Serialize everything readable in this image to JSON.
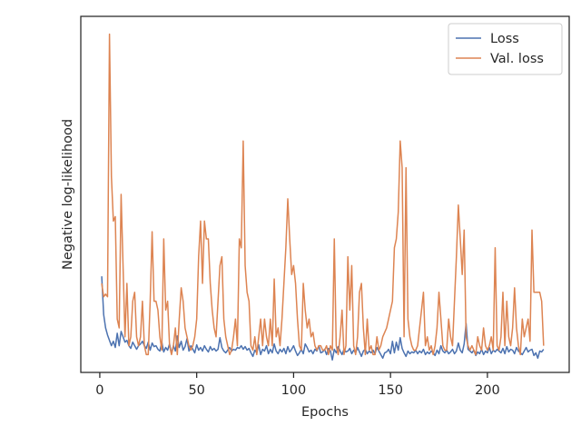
{
  "chart_data": {
    "type": "line",
    "x_label": "Epochs",
    "y_label": "Negative log-likelihood",
    "xlim": [
      -9.8,
      242.2
    ],
    "xticks": [
      0,
      50,
      100,
      150,
      200
    ],
    "ylim": [
      0,
      40
    ],
    "legend": "upper right",
    "x": [
      1,
      2,
      3,
      4,
      5,
      6,
      7,
      8,
      9,
      10,
      11,
      12,
      13,
      14,
      15,
      16,
      17,
      18,
      19,
      20,
      21,
      22,
      23,
      24,
      25,
      26,
      27,
      28,
      29,
      30,
      31,
      32,
      33,
      34,
      35,
      36,
      37,
      38,
      39,
      40,
      41,
      42,
      43,
      44,
      45,
      46,
      47,
      48,
      49,
      50,
      51,
      52,
      53,
      54,
      55,
      56,
      57,
      58,
      59,
      60,
      61,
      62,
      63,
      64,
      65,
      66,
      67,
      68,
      69,
      70,
      71,
      72,
      73,
      74,
      75,
      76,
      77,
      78,
      79,
      80,
      81,
      82,
      83,
      84,
      85,
      86,
      87,
      88,
      89,
      90,
      91,
      92,
      93,
      94,
      95,
      96,
      97,
      98,
      99,
      100,
      101,
      102,
      103,
      104,
      105,
      106,
      107,
      108,
      109,
      110,
      111,
      112,
      113,
      114,
      115,
      116,
      117,
      118,
      119,
      120,
      121,
      122,
      123,
      124,
      125,
      126,
      127,
      128,
      129,
      130,
      131,
      132,
      133,
      134,
      135,
      136,
      137,
      138,
      139,
      140,
      141,
      142,
      143,
      144,
      145,
      146,
      147,
      148,
      149,
      150,
      151,
      152,
      153,
      154,
      155,
      156,
      157,
      158,
      159,
      160,
      161,
      162,
      163,
      164,
      165,
      166,
      167,
      168,
      169,
      170,
      171,
      172,
      173,
      174,
      175,
      176,
      177,
      178,
      179,
      180,
      181,
      182,
      183,
      184,
      185,
      186,
      187,
      188,
      189,
      190,
      191,
      192,
      193,
      194,
      195,
      196,
      197,
      198,
      199,
      200,
      201,
      202,
      203,
      204,
      205,
      206,
      207,
      208,
      209,
      210,
      211,
      212,
      213,
      214,
      215,
      216,
      217,
      218,
      219,
      220,
      221,
      222,
      223,
      224,
      225,
      226,
      227,
      228,
      229
    ],
    "series": [
      {
        "name": "Loss",
        "color": "#4c72b0",
        "values": [
          10.8,
          6.5,
          5,
          4.2,
          3.6,
          3,
          3.5,
          2.8,
          4.4,
          3,
          4.6,
          4,
          3.4,
          3.6,
          3,
          2.7,
          3.4,
          3,
          2.6,
          3,
          3.2,
          3.5,
          3,
          2.7,
          3.4,
          2.5,
          3.3,
          2.9,
          3,
          2.6,
          2.4,
          3.4,
          2.3,
          2.8,
          2.5,
          3.2,
          2.1,
          3,
          2.4,
          4.1,
          2.8,
          3.5,
          2.5,
          2.9,
          3.8,
          2.4,
          3,
          2.6,
          2.2,
          3.1,
          2.5,
          2.8,
          2.4,
          3,
          2.6,
          2.3,
          2.9,
          2.5,
          2.7,
          2.4,
          2.6,
          3.9,
          2.8,
          2.4,
          2.2,
          2.5,
          2.8,
          2.4,
          2.6,
          2.5,
          2.8,
          2.7,
          3,
          2.6,
          2.9,
          2.5,
          2.7,
          2.2,
          1.8,
          2.5,
          2.2,
          3.1,
          2,
          2.6,
          2.4,
          3,
          2.1,
          2.6,
          2.2,
          3.2,
          2.4,
          2.1,
          2.6,
          2.3,
          2.7,
          2.1,
          2.9,
          2.3,
          2.6,
          3,
          2.4,
          1.9,
          2.2,
          2.6,
          2.1,
          3.2,
          2.8,
          2.3,
          2.5,
          2.1,
          2.6,
          2.4,
          3,
          2.2,
          2.3,
          2.6,
          2,
          2.7,
          2.4,
          1.4,
          2.6,
          2.2,
          2.9,
          2.4,
          2,
          2.6,
          2.3,
          2.4,
          2.7,
          2.1,
          2.5,
          2.2,
          2.8,
          2.3,
          1.8,
          2.4,
          2.6,
          2.1,
          2.4,
          2.2,
          2.5,
          2.1,
          2.8,
          2.4,
          2,
          1.6,
          2.2,
          2.3,
          2.6,
          2.1,
          3.5,
          2.2,
          3.4,
          2.5,
          3.9,
          2.7,
          2.2,
          1.8,
          2.4,
          2.1,
          2.3,
          2.2,
          2.5,
          2.1,
          2.4,
          2.2,
          2.6,
          2,
          2.3,
          2.1,
          2.4,
          2.2,
          1.9,
          2.5,
          2.1,
          3,
          2.4,
          2.2,
          2.5,
          2.1,
          2.3,
          2.6,
          2.1,
          2.4,
          3.3,
          2.5,
          2.2,
          3.2,
          5.5,
          2.6,
          2.4,
          2.2,
          2.5,
          1.9,
          2.3,
          2.1,
          2.6,
          2,
          2.4,
          2.2,
          2.8,
          2.1,
          2.5,
          2.3,
          2.6,
          2.4,
          2.2,
          2.7,
          2.1,
          2.9,
          2.3,
          2.6,
          2.5,
          2.1,
          2.8,
          2.4,
          2.2,
          2,
          2.4,
          2.8,
          2.3,
          2.5,
          2.6,
          1.9,
          2.2,
          1.6,
          2.4,
          2.3,
          2.6
        ]
      },
      {
        "name": "Val. loss",
        "color": "#dd8452",
        "values": [
          10,
          8.5,
          8.8,
          8.5,
          38,
          22,
          17,
          17.5,
          6,
          5,
          20,
          12,
          4,
          10,
          3,
          4,
          8,
          9,
          4,
          3,
          4,
          8,
          3,
          2,
          2,
          8,
          15.8,
          8,
          8,
          7,
          4,
          2.5,
          15,
          7,
          8,
          3,
          2,
          3,
          5,
          2,
          6,
          9.5,
          8,
          5,
          4,
          3,
          2.5,
          3,
          4,
          6,
          13,
          17,
          10,
          17,
          15,
          15,
          10,
          7,
          5,
          4,
          8,
          12,
          13,
          6,
          4,
          3,
          2,
          2.5,
          4,
          6,
          3,
          15,
          14,
          26,
          12,
          9,
          8,
          3,
          2.5,
          4,
          2,
          4,
          6,
          3,
          6,
          4,
          3,
          6,
          3,
          10.5,
          4,
          5,
          3,
          6,
          10,
          14,
          19.5,
          15,
          11,
          12,
          10,
          6,
          3,
          2.5,
          10,
          7,
          5,
          6,
          4,
          4.5,
          3,
          2.5,
          3,
          3,
          2.5,
          2.5,
          3,
          2,
          3,
          2.5,
          15,
          3,
          2,
          4,
          7,
          2,
          3,
          13,
          7,
          12,
          3,
          2,
          4,
          9,
          10,
          5,
          2,
          6,
          2.5,
          3,
          2,
          2,
          4,
          2.5,
          3,
          4,
          4.5,
          5,
          6,
          7,
          8,
          14,
          15,
          18,
          26,
          23,
          4,
          23,
          6,
          4,
          3,
          2.5,
          2.5,
          3,
          5,
          7,
          9,
          3,
          4,
          2.5,
          3,
          2,
          3,
          5,
          9,
          6,
          3,
          2.5,
          2.5,
          6,
          4,
          3,
          8,
          13,
          18.8,
          15,
          11,
          16,
          4,
          3,
          2.5,
          3,
          2.5,
          2,
          4,
          3,
          2.5,
          5,
          3,
          2.5,
          3,
          4,
          2.5,
          14,
          3,
          2.5,
          4,
          9,
          3,
          8,
          4,
          3,
          5,
          9.5,
          5,
          3,
          2,
          6,
          4,
          5,
          6,
          3.5,
          16,
          9,
          9,
          9,
          9,
          8,
          3
        ]
      }
    ]
  }
}
